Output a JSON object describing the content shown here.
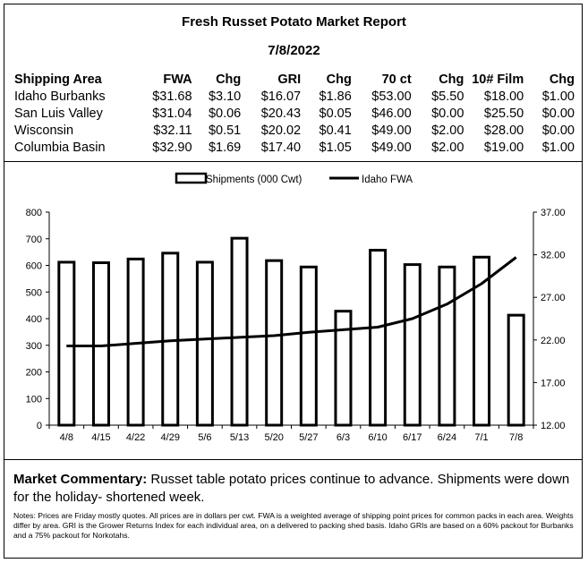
{
  "report": {
    "title": "Fresh Russet Potato Market Report",
    "date": "7/8/2022"
  },
  "table": {
    "headers": [
      "Shipping Area",
      "FWA",
      "Chg",
      "GRI",
      "Chg",
      "70 ct",
      "Chg",
      "10# Film",
      "Chg"
    ],
    "rows": [
      [
        "Idaho Burbanks",
        "$31.68",
        "$3.10",
        "$16.07",
        "$1.86",
        "$53.00",
        "$5.50",
        "$18.00",
        "$1.00"
      ],
      [
        "San Luis Valley",
        "$31.04",
        "$0.06",
        "$20.43",
        "$0.05",
        "$46.00",
        "$0.00",
        "$25.50",
        "$0.00"
      ],
      [
        "Wisconsin",
        "$32.11",
        "$0.51",
        "$20.02",
        "$0.41",
        "$49.00",
        "$2.00",
        "$28.00",
        "$0.00"
      ],
      [
        "Columbia Basin",
        "$32.90",
        "$1.69",
        "$17.40",
        "$1.05",
        "$49.00",
        "$2.00",
        "$19.00",
        "$1.00"
      ]
    ]
  },
  "chart_data": {
    "type": "bar",
    "categories": [
      "4/8",
      "4/15",
      "4/22",
      "4/29",
      "5/6",
      "5/13",
      "5/20",
      "5/27",
      "6/3",
      "6/10",
      "6/17",
      "6/24",
      "7/1",
      "7/8"
    ],
    "series": [
      {
        "name": "Shipments (000 Cwt)",
        "type": "bar",
        "axis": "left",
        "values": [
          612,
          610,
          624,
          646,
          612,
          702,
          618,
          594,
          428,
          657,
          603,
          594,
          631,
          413
        ],
        "color": "#ffffff"
      },
      {
        "name": "Idaho FWA",
        "type": "line",
        "axis": "right",
        "values": [
          21.3,
          21.3,
          21.6,
          21.9,
          22.1,
          22.3,
          22.5,
          22.9,
          23.2,
          23.5,
          24.5,
          26.2,
          28.6,
          31.7
        ],
        "color": "#000000"
      }
    ],
    "ylim_left": [
      0,
      800
    ],
    "yticks_left": [
      "0",
      "100",
      "200",
      "300",
      "400",
      "500",
      "600",
      "700",
      "800"
    ],
    "ylim_right": [
      12,
      37
    ],
    "yticks_right": [
      "12.00",
      "17.00",
      "22.00",
      "27.00",
      "32.00",
      "37.00"
    ],
    "legend_position": "top-center",
    "grid": false
  },
  "commentary": {
    "label": "Market Commentary:",
    "text": " Russet table potato prices continue to advance. Shipments were down for the holiday- shortened week."
  },
  "notes": "Notes: Prices are Friday mostly quotes. All prices are in dollars per cwt. FWA is a weighted average of shipping point prices for  common packs in each area. Weights differ by area. GRI is the Grower Returns Index for each individual area, on a delivered to packing shed basis. Idaho GRIs are based on a 60% packout for Burbanks and a 75% packout for Norkotahs."
}
